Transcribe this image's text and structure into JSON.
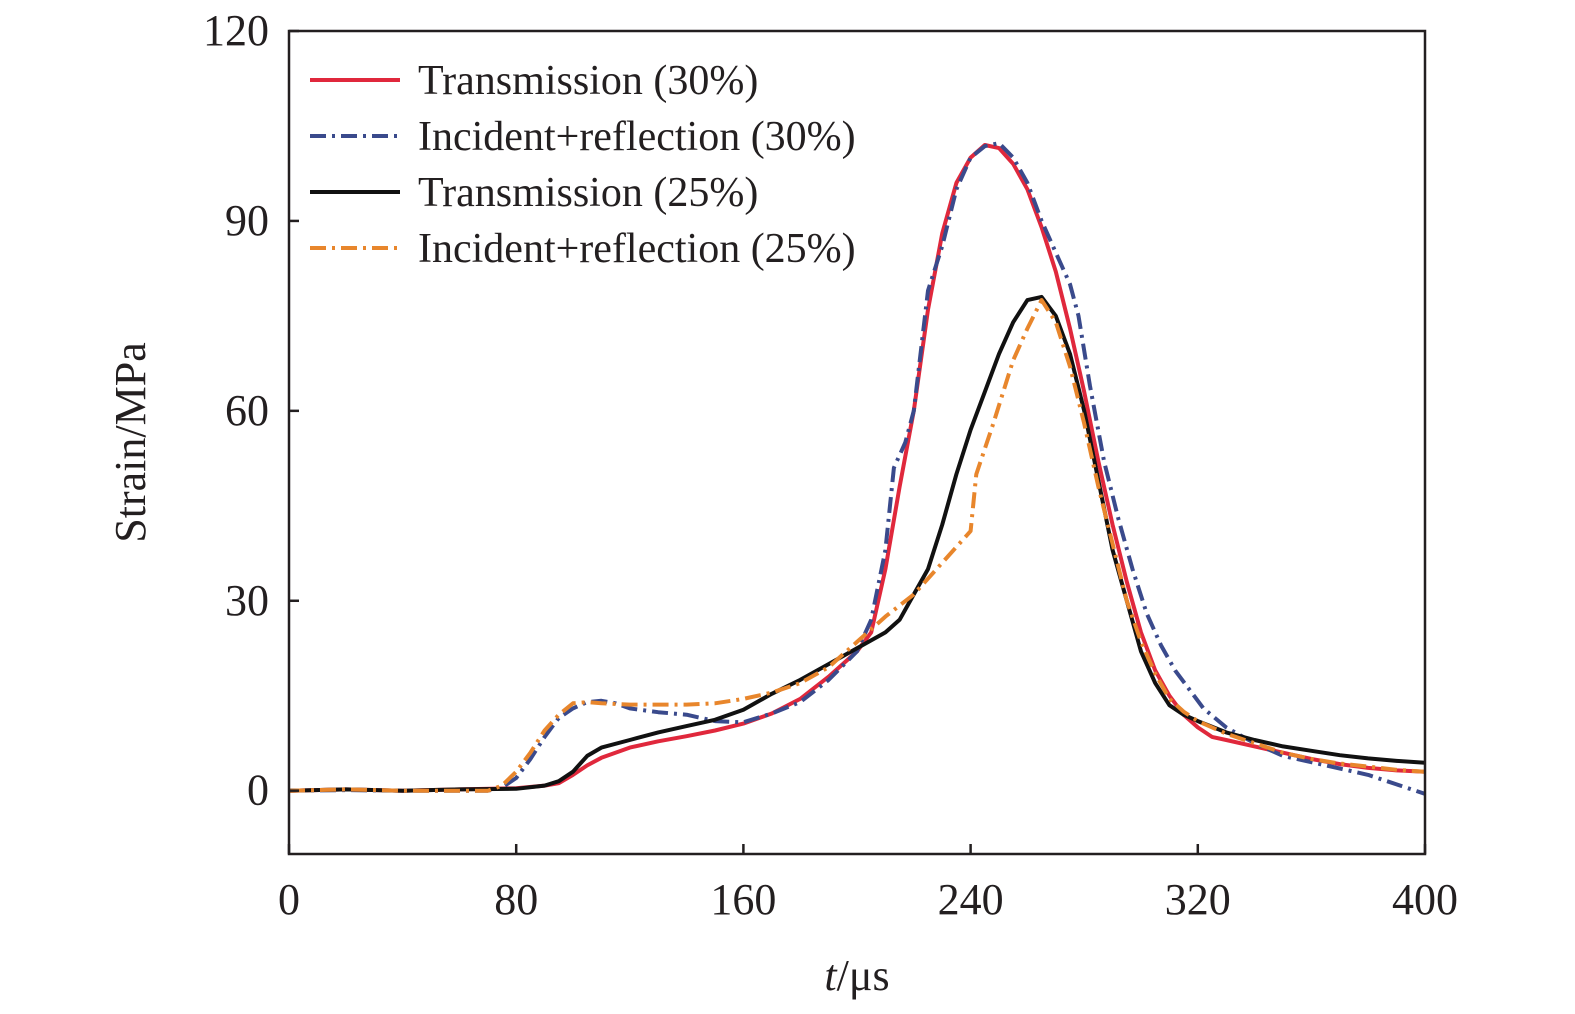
{
  "chart_data": {
    "type": "line",
    "title": "",
    "xlabel_italic": "t",
    "xlabel_rest": "/μs",
    "ylabel": "Strain/MPa",
    "xlim": [
      0,
      400
    ],
    "ylim": [
      -10,
      120
    ],
    "xticks": [
      0,
      80,
      160,
      240,
      320,
      400
    ],
    "yticks": [
      0,
      30,
      60,
      90,
      120
    ],
    "xtick_labels": [
      "0",
      "80",
      "160",
      "240",
      "320",
      "400"
    ],
    "ytick_labels": [
      "0",
      "30",
      "60",
      "90",
      "120"
    ],
    "grid": false,
    "legend_position": "top-left",
    "series": [
      {
        "name": "Transmission (30%)",
        "color": "#e0283c",
        "dash": "solid",
        "points": [
          [
            0,
            0
          ],
          [
            20,
            0.2
          ],
          [
            40,
            0
          ],
          [
            60,
            0.2
          ],
          [
            80,
            0.4
          ],
          [
            90,
            0.8
          ],
          [
            95,
            1.2
          ],
          [
            100,
            2.5
          ],
          [
            105,
            4
          ],
          [
            110,
            5.2
          ],
          [
            120,
            6.8
          ],
          [
            130,
            7.8
          ],
          [
            140,
            8.6
          ],
          [
            150,
            9.5
          ],
          [
            160,
            10.6
          ],
          [
            170,
            12.2
          ],
          [
            180,
            14.5
          ],
          [
            190,
            18
          ],
          [
            200,
            22
          ],
          [
            205,
            25
          ],
          [
            210,
            35
          ],
          [
            215,
            48
          ],
          [
            220,
            60
          ],
          [
            225,
            76
          ],
          [
            230,
            88
          ],
          [
            235,
            96
          ],
          [
            240,
            100
          ],
          [
            245,
            102
          ],
          [
            250,
            101.5
          ],
          [
            255,
            99
          ],
          [
            260,
            95
          ],
          [
            265,
            89
          ],
          [
            270,
            82
          ],
          [
            275,
            73
          ],
          [
            280,
            63
          ],
          [
            285,
            52
          ],
          [
            290,
            42
          ],
          [
            295,
            33
          ],
          [
            300,
            25
          ],
          [
            305,
            19
          ],
          [
            310,
            15
          ],
          [
            315,
            12
          ],
          [
            320,
            10
          ],
          [
            325,
            8.5
          ],
          [
            330,
            8
          ],
          [
            340,
            7
          ],
          [
            350,
            6
          ],
          [
            360,
            5
          ],
          [
            370,
            4.2
          ],
          [
            380,
            3.6
          ],
          [
            390,
            3.2
          ],
          [
            400,
            3
          ]
        ]
      },
      {
        "name": "Incident+reflection (30%)",
        "color": "#3a4a8c",
        "dash": "dashdot",
        "points": [
          [
            0,
            0
          ],
          [
            20,
            0.1
          ],
          [
            40,
            0
          ],
          [
            60,
            0
          ],
          [
            70,
            0
          ],
          [
            75,
            0.5
          ],
          [
            80,
            2
          ],
          [
            85,
            5
          ],
          [
            90,
            8.5
          ],
          [
            95,
            11.5
          ],
          [
            100,
            13
          ],
          [
            105,
            14
          ],
          [
            110,
            14.2
          ],
          [
            115,
            13.8
          ],
          [
            120,
            13
          ],
          [
            130,
            12.4
          ],
          [
            140,
            12
          ],
          [
            150,
            11
          ],
          [
            160,
            10.8
          ],
          [
            170,
            12.2
          ],
          [
            180,
            14
          ],
          [
            190,
            17.5
          ],
          [
            200,
            22
          ],
          [
            205,
            27
          ],
          [
            210,
            38
          ],
          [
            213,
            51
          ],
          [
            217,
            55
          ],
          [
            220,
            60
          ],
          [
            225,
            79
          ],
          [
            230,
            86
          ],
          [
            235,
            95
          ],
          [
            240,
            100
          ],
          [
            245,
            101.8
          ],
          [
            250,
            102.3
          ],
          [
            255,
            100
          ],
          [
            260,
            96
          ],
          [
            265,
            90
          ],
          [
            270,
            85
          ],
          [
            275,
            80
          ],
          [
            278,
            75
          ],
          [
            282,
            64
          ],
          [
            287,
            52
          ],
          [
            292,
            43
          ],
          [
            297,
            35
          ],
          [
            302,
            28
          ],
          [
            307,
            23
          ],
          [
            312,
            19
          ],
          [
            317,
            16
          ],
          [
            322,
            13
          ],
          [
            330,
            10
          ],
          [
            340,
            7.5
          ],
          [
            350,
            5.5
          ],
          [
            360,
            4.5
          ],
          [
            370,
            3.5
          ],
          [
            380,
            2.5
          ],
          [
            390,
            1
          ],
          [
            400,
            -0.5
          ]
        ]
      },
      {
        "name": "Transmission (25%)",
        "color": "#111111",
        "dash": "solid",
        "points": [
          [
            0,
            0
          ],
          [
            20,
            0.2
          ],
          [
            40,
            0
          ],
          [
            60,
            0.2
          ],
          [
            80,
            0.3
          ],
          [
            90,
            0.8
          ],
          [
            95,
            1.5
          ],
          [
            100,
            3
          ],
          [
            105,
            5.5
          ],
          [
            110,
            6.8
          ],
          [
            120,
            8
          ],
          [
            130,
            9.2
          ],
          [
            140,
            10.2
          ],
          [
            150,
            11.2
          ],
          [
            160,
            12.8
          ],
          [
            170,
            15.3
          ],
          [
            180,
            17.5
          ],
          [
            190,
            20
          ],
          [
            200,
            22.5
          ],
          [
            210,
            25
          ],
          [
            215,
            27
          ],
          [
            220,
            31
          ],
          [
            225,
            35
          ],
          [
            230,
            42
          ],
          [
            235,
            50
          ],
          [
            240,
            57
          ],
          [
            245,
            63
          ],
          [
            250,
            69
          ],
          [
            255,
            74
          ],
          [
            260,
            77.5
          ],
          [
            265,
            78
          ],
          [
            270,
            75
          ],
          [
            275,
            69
          ],
          [
            280,
            60
          ],
          [
            285,
            49
          ],
          [
            290,
            38
          ],
          [
            295,
            30
          ],
          [
            300,
            22
          ],
          [
            305,
            17
          ],
          [
            310,
            13.5
          ],
          [
            315,
            12
          ],
          [
            320,
            11
          ],
          [
            330,
            9.2
          ],
          [
            340,
            8
          ],
          [
            350,
            7
          ],
          [
            360,
            6.3
          ],
          [
            370,
            5.6
          ],
          [
            380,
            5.1
          ],
          [
            390,
            4.7
          ],
          [
            400,
            4.4
          ]
        ]
      },
      {
        "name": "Incident+reflection (25%)",
        "color": "#e8862c",
        "dash": "dashdot",
        "points": [
          [
            0,
            0
          ],
          [
            20,
            0.2
          ],
          [
            40,
            0
          ],
          [
            60,
            0
          ],
          [
            70,
            0
          ],
          [
            75,
            0.8
          ],
          [
            80,
            3
          ],
          [
            85,
            6
          ],
          [
            90,
            9.5
          ],
          [
            95,
            12
          ],
          [
            100,
            13.8
          ],
          [
            105,
            14
          ],
          [
            110,
            13.8
          ],
          [
            120,
            13.6
          ],
          [
            130,
            13.6
          ],
          [
            140,
            13.6
          ],
          [
            150,
            13.8
          ],
          [
            160,
            14.5
          ],
          [
            170,
            15.5
          ],
          [
            180,
            17
          ],
          [
            190,
            19.5
          ],
          [
            200,
            23.5
          ],
          [
            210,
            27.5
          ],
          [
            220,
            31
          ],
          [
            230,
            36
          ],
          [
            240,
            41
          ],
          [
            242,
            50
          ],
          [
            248,
            58
          ],
          [
            255,
            68
          ],
          [
            260,
            73
          ],
          [
            265,
            77.5
          ],
          [
            270,
            74
          ],
          [
            275,
            67
          ],
          [
            280,
            58
          ],
          [
            285,
            48
          ],
          [
            290,
            39
          ],
          [
            295,
            30
          ],
          [
            300,
            23.5
          ],
          [
            305,
            18.5
          ],
          [
            310,
            14.5
          ],
          [
            315,
            12.5
          ],
          [
            320,
            11
          ],
          [
            330,
            9
          ],
          [
            340,
            7.5
          ],
          [
            350,
            6
          ],
          [
            360,
            5
          ],
          [
            370,
            4.3
          ],
          [
            380,
            3.8
          ],
          [
            390,
            3.3
          ],
          [
            400,
            3
          ]
        ]
      }
    ]
  }
}
